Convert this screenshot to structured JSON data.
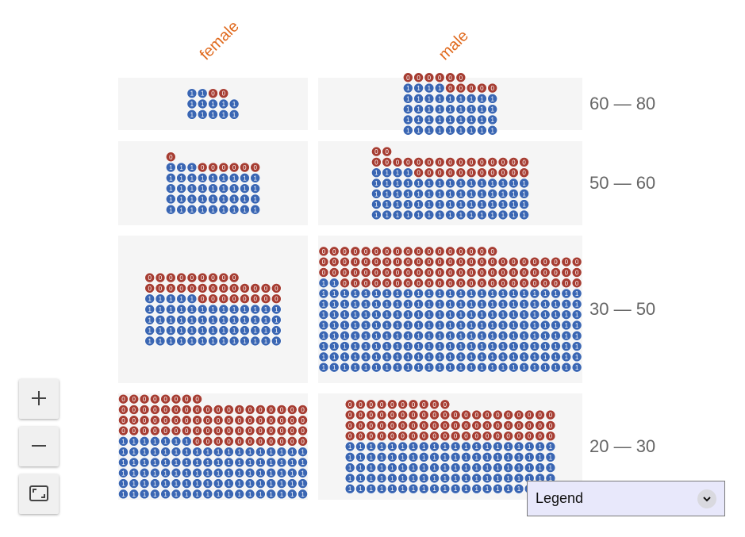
{
  "chart_data": {
    "type": "unit",
    "x_field_values": [
      "female",
      "male"
    ],
    "y_field_values": [
      "60 — 80",
      "50 — 60",
      "30 — 50",
      "20 — 30"
    ],
    "unit_labels": [
      "0",
      "1"
    ],
    "colors": {
      "0": "#a63d32",
      "1": "#3a66b3"
    },
    "cells": [
      {
        "column": "female",
        "row": "60 — 80",
        "count_0": 2,
        "count_1": 12
      },
      {
        "column": "male",
        "row": "60 — 80",
        "count_0": 11,
        "count_1": 40
      },
      {
        "column": "female",
        "row": "50 — 60",
        "count_0": 7,
        "count_1": 39
      },
      {
        "column": "male",
        "row": "50 — 60",
        "count_0": 28,
        "count_1": 64
      },
      {
        "column": "female",
        "row": "30 — 50",
        "count_0": 30,
        "count_1": 57
      },
      {
        "column": "male",
        "row": "30 — 50",
        "count_0": 90,
        "count_1": 202
      },
      {
        "column": "female",
        "row": "20 — 30",
        "count_0": 73,
        "count_1": 97
      },
      {
        "column": "male",
        "row": "20 — 30",
        "count_0": 70,
        "count_1": 100
      }
    ]
  },
  "controls": {
    "zoom_in": "plus-icon",
    "zoom_out": "minus-icon",
    "reset": "fit-screen-icon"
  },
  "legend": {
    "title": "Legend"
  }
}
